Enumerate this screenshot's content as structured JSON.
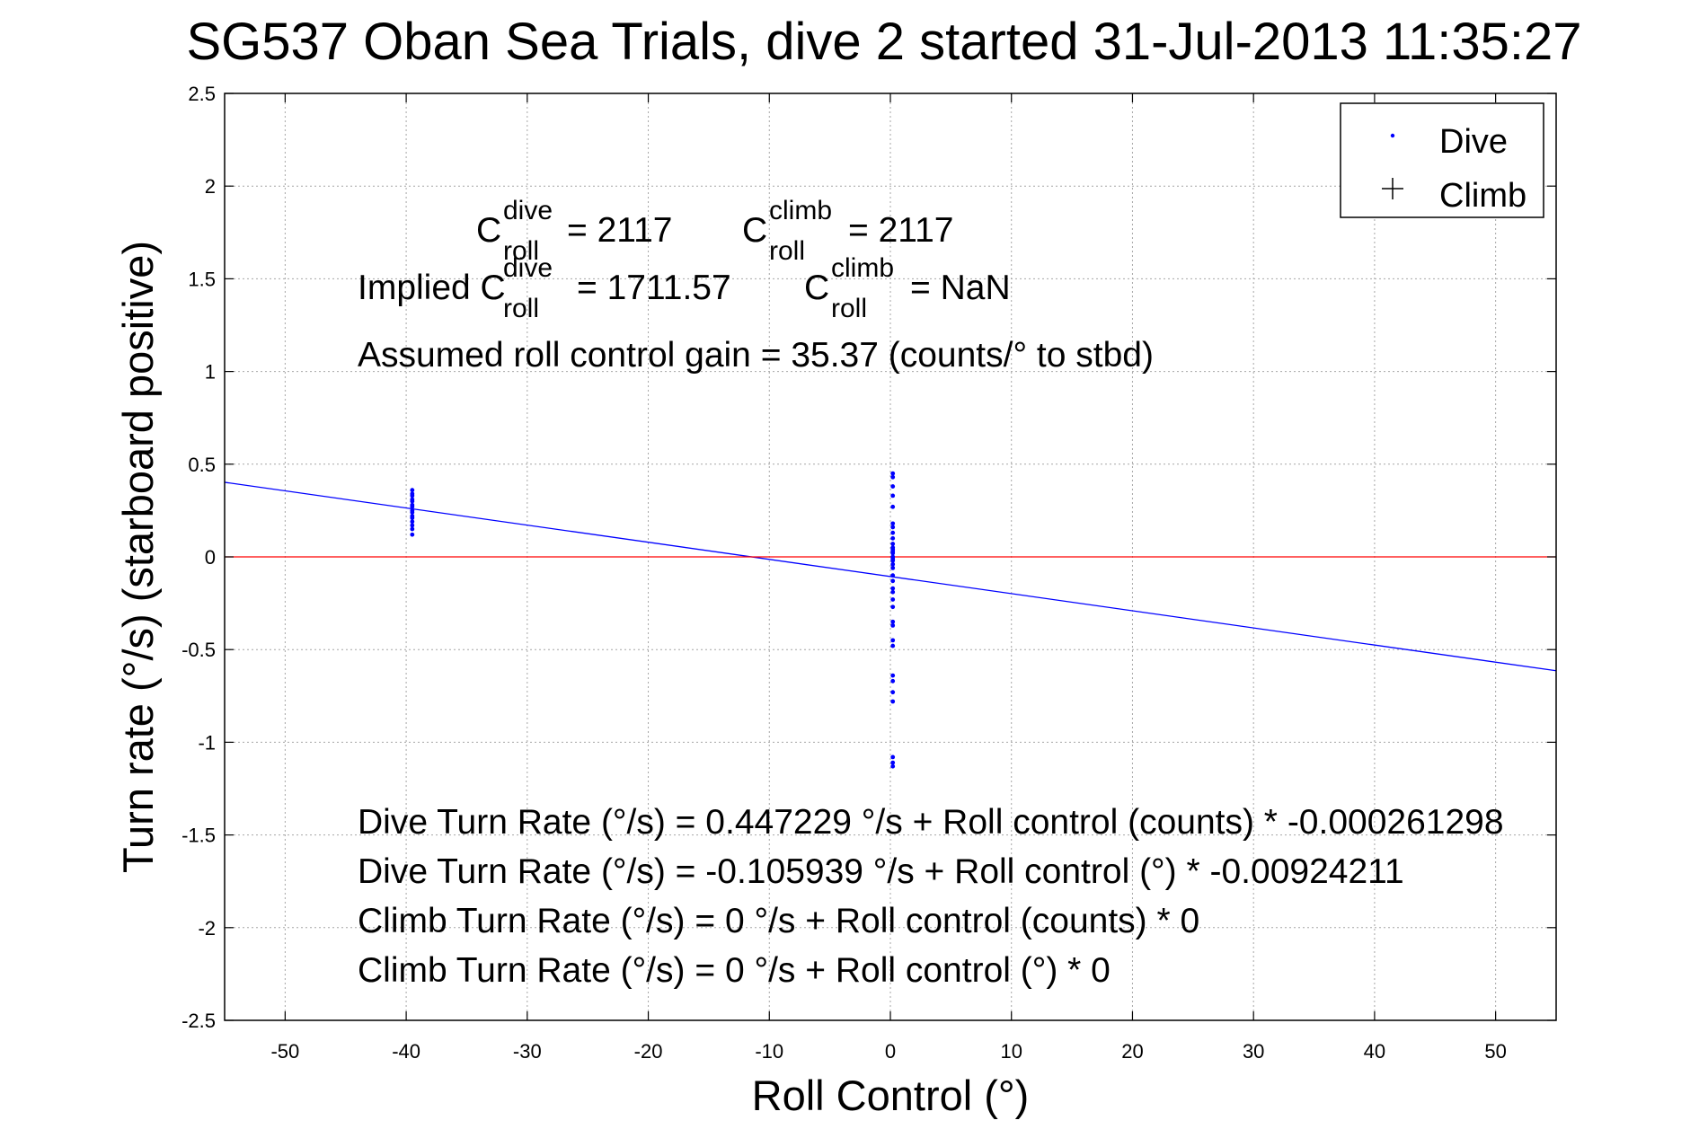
{
  "chart_data": {
    "type": "scatter",
    "title": "SG537 Oban Sea Trials, dive 2 started 31-Jul-2013 11:35:27",
    "xlabel": "Roll Control (°)",
    "ylabel": "Turn rate (°/s)  (starboard positive)",
    "xlim": [
      -55,
      55
    ],
    "ylim": [
      -2.5,
      2.5
    ],
    "xticks": [
      -50,
      -40,
      -30,
      -20,
      -10,
      0,
      10,
      20,
      30,
      40,
      50
    ],
    "yticks": [
      -2.5,
      -2,
      -1.5,
      -1,
      -0.5,
      0,
      0.5,
      1,
      1.5,
      2,
      2.5
    ],
    "xtick_labels": [
      "-50",
      "-40",
      "-30",
      "-20",
      "-10",
      "0",
      "10",
      "20",
      "30",
      "40",
      "50"
    ],
    "ytick_labels": [
      "-2.5",
      "-2",
      "-1.5",
      "-1",
      "-0.5",
      "0",
      "0.5",
      "1",
      "1.5",
      "2",
      "2.5"
    ],
    "grid": true,
    "legend_position": "top-right",
    "series": [
      {
        "name": "Dive",
        "color": "#0000ff",
        "marker": "dot",
        "points": [
          [
            -39.5,
            0.36
          ],
          [
            -39.5,
            0.34
          ],
          [
            -39.5,
            0.33
          ],
          [
            -39.5,
            0.31
          ],
          [
            -39.5,
            0.3
          ],
          [
            -39.5,
            0.28
          ],
          [
            -39.5,
            0.27
          ],
          [
            -39.5,
            0.25
          ],
          [
            -39.5,
            0.24
          ],
          [
            -39.5,
            0.22
          ],
          [
            -39.5,
            0.21
          ],
          [
            -39.5,
            0.19
          ],
          [
            -39.5,
            0.17
          ],
          [
            -39.5,
            0.15
          ],
          [
            -39.5,
            0.12
          ],
          [
            0.2,
            0.45
          ],
          [
            0.2,
            0.43
          ],
          [
            0.2,
            0.38
          ],
          [
            0.2,
            0.33
          ],
          [
            0.2,
            0.27
          ],
          [
            0.2,
            0.18
          ],
          [
            0.2,
            0.16
          ],
          [
            0.2,
            0.13
          ],
          [
            0.2,
            0.1
          ],
          [
            0.2,
            0.07
          ],
          [
            0.2,
            0.05
          ],
          [
            0.2,
            0.04
          ],
          [
            0.2,
            0.03
          ],
          [
            0.2,
            0.02
          ],
          [
            0.2,
            0.0
          ],
          [
            0.2,
            -0.01
          ],
          [
            0.2,
            -0.02
          ],
          [
            0.2,
            -0.04
          ],
          [
            0.2,
            -0.06
          ],
          [
            0.2,
            -0.1
          ],
          [
            0.2,
            -0.13
          ],
          [
            0.2,
            -0.17
          ],
          [
            0.2,
            -0.19
          ],
          [
            0.2,
            -0.23
          ],
          [
            0.2,
            -0.27
          ],
          [
            0.2,
            -0.35
          ],
          [
            0.2,
            -0.37
          ],
          [
            0.2,
            -0.45
          ],
          [
            0.2,
            -0.48
          ],
          [
            0.2,
            -0.64
          ],
          [
            0.2,
            -0.67
          ],
          [
            0.2,
            -0.73
          ],
          [
            0.2,
            -0.78
          ],
          [
            0.2,
            -1.08
          ],
          [
            0.2,
            -1.11
          ],
          [
            0.2,
            -1.13
          ]
        ]
      },
      {
        "name": "Climb",
        "color": "#000000",
        "marker": "plus",
        "points": []
      }
    ],
    "lines": [
      {
        "label": "dive fit",
        "color": "#0000ff",
        "intercept": -0.105939,
        "slope": -0.00924211
      },
      {
        "label": "zero",
        "color": "#ff0000",
        "intercept": 0,
        "slope": 0
      }
    ],
    "annotations": {
      "c_roll_dive": {
        "base": "C",
        "sup": "dive",
        "sub": "roll",
        "value": "= 2117"
      },
      "c_roll_climb": {
        "base": "C",
        "sup": "climb",
        "sub": "roll",
        "value": "= 2117"
      },
      "implied_prefix": "Implied C",
      "implied_dive": {
        "sup": "dive",
        "sub": "roll",
        "value": "= 1711.57"
      },
      "implied_climb": {
        "base": "C",
        "sup": "climb",
        "sub": "roll",
        "value": "= NaN"
      },
      "gain": "Assumed roll control gain = 35.37 (counts/° to stbd)",
      "eq1": "Dive Turn Rate (°/s) = 0.447229 °/s + Roll control (counts) * -0.000261298",
      "eq2": "Dive Turn Rate (°/s) = -0.105939 °/s + Roll control (°) * -0.00924211",
      "eq3": "Climb Turn Rate (°/s) = 0 °/s + Roll control (counts) * 0",
      "eq4": "Climb Turn Rate (°/s) = 0 °/s + Roll control (°) * 0"
    }
  }
}
